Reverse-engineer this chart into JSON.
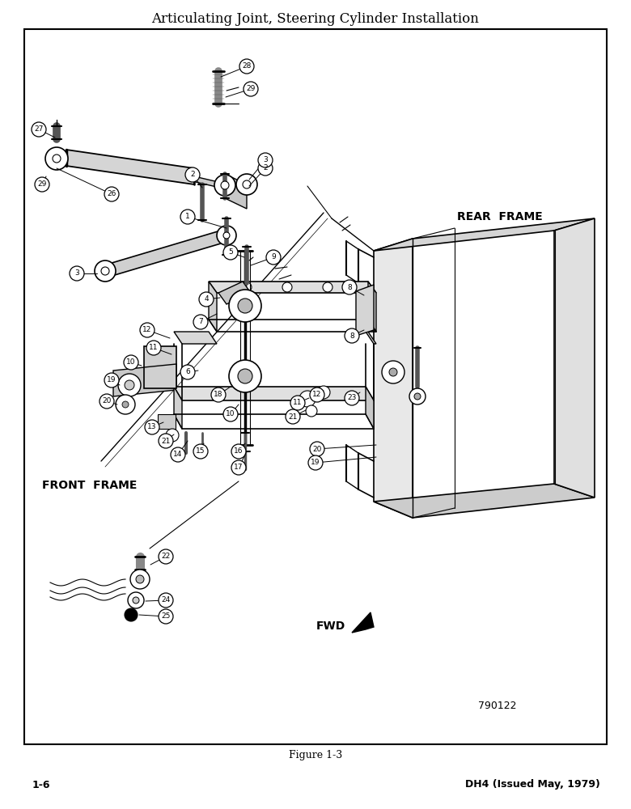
{
  "title": "Articulating Joint, Steering Cylinder Installation",
  "figure_label": "Figure 1-3",
  "page_left": "1-6",
  "page_right": "DH4 (Issued May, 1979)",
  "doc_number": "790122",
  "rear_frame_label": "REAR  FRAME",
  "front_frame_label": "FRONT  FRAME",
  "fwd_label": "FWD",
  "bg_color": "#ffffff",
  "text_color": "#000000"
}
